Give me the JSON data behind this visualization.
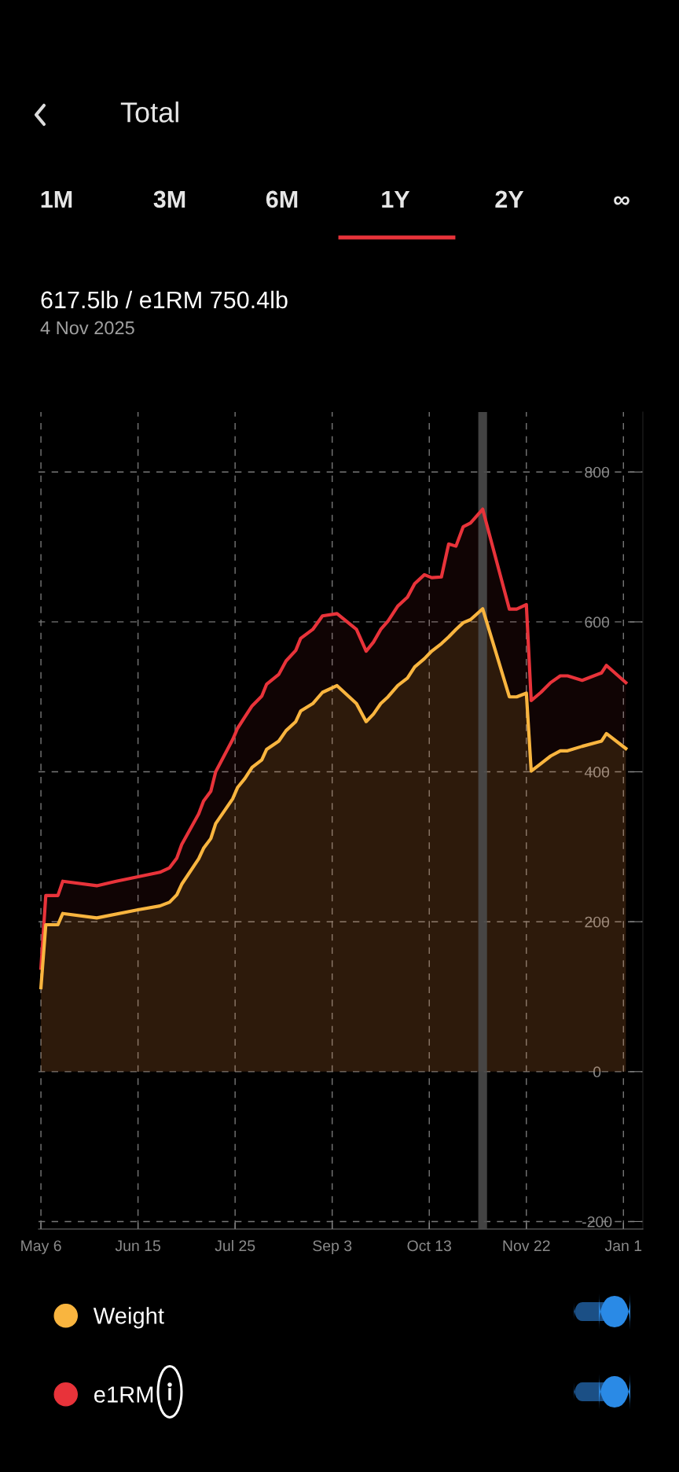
{
  "chart_data": {
    "type": "area",
    "title": "Total",
    "subtitle": "617.5lb / e1RM 750.4lb",
    "annotations": [
      "1M",
      "3M",
      "6M",
      "1Y",
      "2Y",
      "∞",
      "4 Nov 2025"
    ],
    "series": [
      {
        "name": "e1RM",
        "color": "#e8333a",
        "x": [
          "2025-05-06",
          "2025-05-08",
          "2025-05-13",
          "2025-05-15",
          "2025-05-29",
          "2025-06-06",
          "2025-06-24",
          "2025-06-28",
          "2025-07-01",
          "2025-07-03",
          "2025-07-10",
          "2025-07-12",
          "2025-07-15",
          "2025-07-17",
          "2025-07-24",
          "2025-07-26",
          "2025-07-29",
          "2025-08-01",
          "2025-08-05",
          "2025-08-07",
          "2025-08-12",
          "2025-08-15",
          "2025-08-19",
          "2025-08-21",
          "2025-08-26",
          "2025-08-30",
          "2025-09-05",
          "2025-09-13",
          "2025-09-17",
          "2025-09-20",
          "2025-09-23",
          "2025-09-26",
          "2025-09-30",
          "2025-10-04",
          "2025-10-07",
          "2025-10-11",
          "2025-10-14",
          "2025-10-18",
          "2025-10-21",
          "2025-10-24",
          "2025-10-27",
          "2025-10-30",
          "2025-11-04",
          "2025-11-15",
          "2025-11-18",
          "2025-11-22",
          "2025-11-24",
          "2025-11-28",
          "2025-12-02",
          "2025-12-06",
          "2025-12-09",
          "2025-12-15",
          "2025-12-23",
          "2025-12-25",
          "2026-01-02"
        ],
        "values": [
          138,
          235,
          235,
          254,
          248,
          254,
          266,
          272,
          285,
          303,
          344,
          361,
          374,
          400,
          443,
          458,
          473,
          488,
          501,
          517,
          530,
          548,
          562,
          578,
          590,
          608,
          611,
          590,
          561,
          573,
          590,
          601,
          621,
          633,
          651,
          663,
          659,
          660,
          704,
          701,
          727,
          732,
          750.4,
          617,
          617,
          623,
          495,
          506,
          519,
          528,
          528,
          522,
          532,
          542,
          519
        ]
      },
      {
        "name": "Weight",
        "color": "#f9b53f",
        "x": [
          "2025-05-06",
          "2025-05-08",
          "2025-05-13",
          "2025-05-15",
          "2025-05-29",
          "2025-06-15",
          "2025-06-24",
          "2025-06-28",
          "2025-07-01",
          "2025-07-03",
          "2025-07-10",
          "2025-07-12",
          "2025-07-15",
          "2025-07-17",
          "2025-07-24",
          "2025-07-26",
          "2025-07-29",
          "2025-08-01",
          "2025-08-05",
          "2025-08-07",
          "2025-08-12",
          "2025-08-15",
          "2025-08-19",
          "2025-08-21",
          "2025-08-26",
          "2025-08-30",
          "2025-09-05",
          "2025-09-13",
          "2025-09-17",
          "2025-09-20",
          "2025-09-23",
          "2025-09-26",
          "2025-09-30",
          "2025-10-04",
          "2025-10-07",
          "2025-10-11",
          "2025-10-14",
          "2025-10-18",
          "2025-10-21",
          "2025-10-24",
          "2025-10-27",
          "2025-10-30",
          "2025-11-04",
          "2025-11-15",
          "2025-11-18",
          "2025-11-22",
          "2025-11-24",
          "2025-11-28",
          "2025-12-02",
          "2025-12-06",
          "2025-12-09",
          "2025-12-15",
          "2025-12-23",
          "2025-12-25",
          "2026-01-02"
        ],
        "values": [
          112,
          196,
          196,
          211,
          205,
          216,
          221,
          226,
          236,
          250,
          284,
          298,
          311,
          331,
          364,
          379,
          391,
          406,
          416,
          430,
          441,
          455,
          467,
          481,
          491,
          506,
          515,
          491,
          467,
          477,
          491,
          500,
          515,
          525,
          540,
          551,
          561,
          571,
          580,
          590,
          599,
          603,
          617.5,
          500,
          500,
          505,
          401,
          411,
          421,
          428,
          428,
          434,
          441,
          451,
          431
        ]
      }
    ],
    "ref_lines": [
      {
        "axis": "x",
        "value": "2025-11-04",
        "color": "#4a4a4a"
      }
    ],
    "xlim": [
      "2025-05-05",
      "2026-01-09"
    ],
    "xticks": [
      {
        "value": "2025-05-06",
        "label": "May 6"
      },
      {
        "value": "2025-06-15",
        "label": "Jun 15"
      },
      {
        "value": "2025-07-25",
        "label": "Jul 25"
      },
      {
        "value": "2025-09-03",
        "label": "Sep 3"
      },
      {
        "value": "2025-10-13",
        "label": "Oct 13"
      },
      {
        "value": "2025-11-22",
        "label": "Nov 22"
      },
      {
        "value": "2026-01-01",
        "label": "Jan 1"
      }
    ],
    "ylim": [
      -210,
      880
    ],
    "yticks": [
      -200,
      0,
      200,
      400,
      600,
      800
    ],
    "grid": true,
    "legend": "bottom"
  }
}
